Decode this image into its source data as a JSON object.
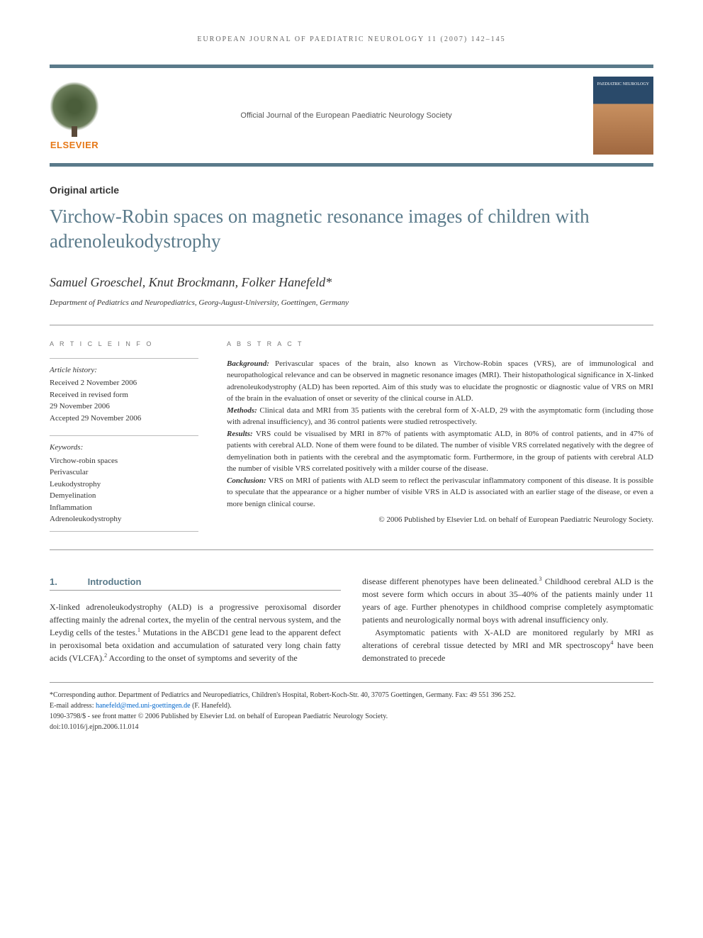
{
  "running_header": "EUROPEAN JOURNAL OF PAEDIATRIC NEUROLOGY 11 (2007) 142–145",
  "publisher": {
    "name": "ELSEVIER"
  },
  "journal": {
    "tagline": "Official Journal of the European Paediatric Neurology Society",
    "cover_title": "PAEDIATRIC NEUROLOGY"
  },
  "article": {
    "type": "Original article",
    "title": "Virchow-Robin spaces on magnetic resonance images of children with adrenoleukodystrophy",
    "authors": "Samuel Groeschel, Knut Brockmann, Folker Hanefeld*",
    "affiliation": "Department of Pediatrics and Neuropediatrics, Georg-August-University, Goettingen, Germany"
  },
  "article_info": {
    "label": "A R T I C L E  I N F O",
    "history_label": "Article history:",
    "history": {
      "received": "Received 2 November 2006",
      "revised1": "Received in revised form",
      "revised2": "29 November 2006",
      "accepted": "Accepted 29 November 2006"
    },
    "keywords_label": "Keywords:",
    "keywords": [
      "Virchow-robin spaces",
      "Perivascular",
      "Leukodystrophy",
      "Demyelination",
      "Inflammation",
      "Adrenoleukodystrophy"
    ]
  },
  "abstract": {
    "label": "A B S T R A C T",
    "background_label": "Background:",
    "background": "Perivascular spaces of the brain, also known as Virchow-Robin spaces (VRS), are of immunological and neuropathological relevance and can be observed in magnetic resonance images (MRI). Their histopathological significance in X-linked adrenoleukodystrophy (ALD) has been reported. Aim of this study was to elucidate the prognostic or diagnostic value of VRS on MRI of the brain in the evaluation of onset or severity of the clinical course in ALD.",
    "methods_label": "Methods:",
    "methods": "Clinical data and MRI from 35 patients with the cerebral form of X-ALD, 29 with the asymptomatic form (including those with adrenal insufficiency), and 36 control patients were studied retrospectively.",
    "results_label": "Results:",
    "results": "VRS could be visualised by MRI in 87% of patients with asymptomatic ALD, in 80% of control patients, and in 47% of patients with cerebral ALD. None of them were found to be dilated. The number of visible VRS correlated negatively with the degree of demyelination both in patients with the cerebral and the asymptomatic form. Furthermore, in the group of patients with cerebral ALD the number of visible VRS correlated positively with a milder course of the disease.",
    "conclusion_label": "Conclusion:",
    "conclusion": "VRS on MRI of patients with ALD seem to reflect the perivascular inflammatory component of this disease. It is possible to speculate that the appearance or a higher number of visible VRS in ALD is associated with an earlier stage of the disease, or even a more benign clinical course.",
    "copyright": "© 2006 Published by Elsevier Ltd. on behalf of European Paediatric Neurology Society."
  },
  "body": {
    "section1": {
      "num": "1.",
      "heading": "Introduction",
      "para1a": "X-linked adrenoleukodystrophy (ALD) is a progressive peroxisomal disorder affecting mainly the adrenal cortex, the myelin of the central nervous system, and the Leydig cells of the testes.",
      "para1b": " Mutations in the ABCD1 gene lead to the apparent defect in peroxisomal beta oxidation and accumulation of saturated very long chain fatty acids (VLCFA).",
      "para1c": " According to the onset of symptoms and severity of the",
      "para2a": "disease different phenotypes have been delineated.",
      "para2b": " Childhood cerebral ALD is the most severe form which occurs in about 35–40% of the patients mainly under 11 years of age. Further phenotypes in childhood comprise completely asymptomatic patients and neurologically normal boys with adrenal insufficiency only.",
      "para3a": "Asymptomatic patients with X-ALD are monitored regularly by MRI as alterations of cerebral tissue detected by MRI and MR spectroscopy",
      "para3b": " have been demonstrated to precede"
    }
  },
  "footer": {
    "corresponding": "*Corresponding author. Department of Pediatrics and Neuropediatrics, Children's Hospital, Robert-Koch-Str. 40, 37075 Goettingen, Germany. Fax: 49 551 396 252.",
    "email_label": "E-mail address: ",
    "email": "hanefeld@med.uni-goettingen.de",
    "email_person": " (F. Hanefeld).",
    "issn": "1090-3798/$ - see front matter © 2006 Published by Elsevier Ltd. on behalf of European Paediatric Neurology Society.",
    "doi": "doi:10.1016/j.ejpn.2006.11.014"
  },
  "colors": {
    "accent": "#5a7a8a",
    "elsevier_orange": "#e67817",
    "link": "#0066cc"
  }
}
